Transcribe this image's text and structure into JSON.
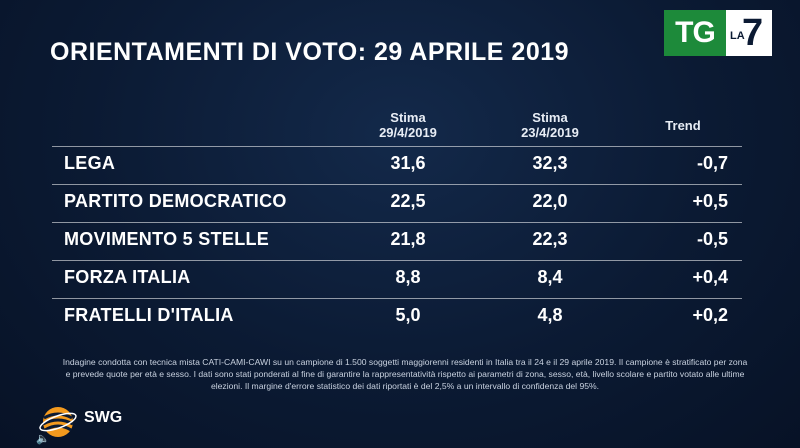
{
  "title": "ORIENTAMENTI DI VOTO: 29 APRILE 2019",
  "logo": {
    "tg": "TG",
    "la": "LA",
    "seven": "7"
  },
  "columns": {
    "c1_line1": "Stima",
    "c1_line2": "29/4/2019",
    "c2_line1": "Stima",
    "c2_line2": "23/4/2019",
    "c3": "Trend"
  },
  "rows": [
    {
      "party": "LEGA",
      "v1": "31,6",
      "v2": "32,3",
      "trend": "-0,7"
    },
    {
      "party": "PARTITO DEMOCRATICO",
      "v1": "22,5",
      "v2": "22,0",
      "trend": "+0,5"
    },
    {
      "party": "MOVIMENTO 5 STELLE",
      "v1": "21,8",
      "v2": "22,3",
      "trend": "-0,5"
    },
    {
      "party": "FORZA ITALIA",
      "v1": "8,8",
      "v2": "8,4",
      "trend": "+0,4"
    },
    {
      "party": "FRATELLI D'ITALIA",
      "v1": "5,0",
      "v2": "4,8",
      "trend": "+0,2"
    }
  ],
  "note": "Indagine condotta con tecnica mista CATI-CAMI-CAWI su un campione di 1.500 soggetti maggiorenni residenti in Italia tra il 24 e il 29 aprile 2019. Il campione è stratificato per zona e prevede quote per età e sesso. I dati sono stati ponderati al fine di garantire la rappresentatività rispetto ai parametri di zona, sesso, età, livello scolare e partito votato alle ultime elezioni. Il margine d'errore statistico dei dati riportati è del 2,5% a un intervallo di confidenza del 95%.",
  "brand": "SWG",
  "icons": {
    "speaker": "speaker-icon",
    "swg": "swg-logo-icon"
  },
  "colors": {
    "background": "#0b1a33",
    "tg_green": "#1d8a3a",
    "orange": "#f39a1e"
  }
}
